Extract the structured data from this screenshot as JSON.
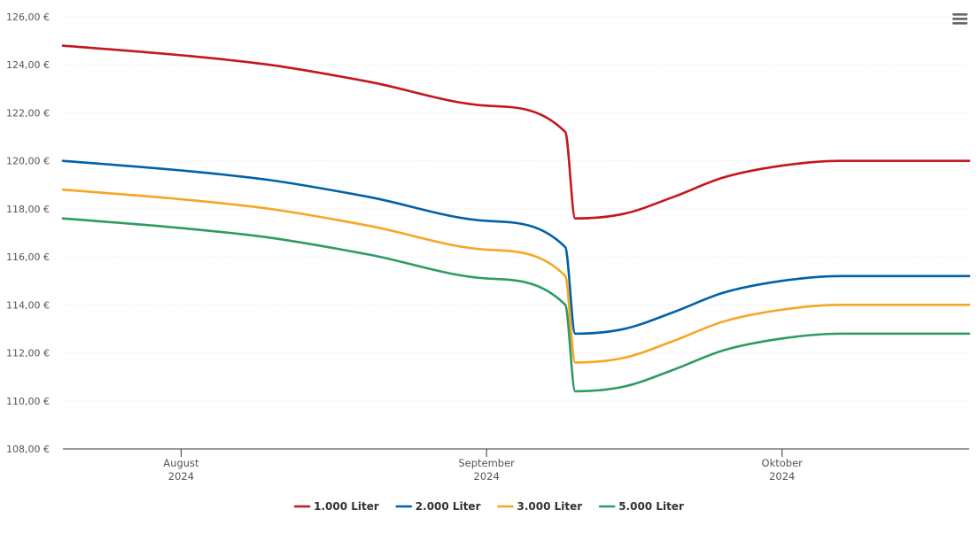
{
  "chart_data": {
    "type": "line",
    "title": "",
    "xlabel": "",
    "ylabel": "",
    "ylim": [
      108,
      126
    ],
    "yticks": [
      "108,00 €",
      "110,00 €",
      "112,00 €",
      "114,00 €",
      "116,00 €",
      "118,00 €",
      "120,00 €",
      "122,00 €",
      "124,00 €",
      "126,00 €"
    ],
    "xlim": [
      "2024-07-20",
      "2024-10-20"
    ],
    "xticks": [
      {
        "date": "2024-08-01",
        "label": "August",
        "year": "2024"
      },
      {
        "date": "2024-09-01",
        "label": "September",
        "year": "2024"
      },
      {
        "date": "2024-10-01",
        "label": "Oktober",
        "year": "2024"
      }
    ],
    "legend_position": "bottom",
    "grid": true,
    "series": [
      {
        "name": "1.000 Liter",
        "color": "#c4161c",
        "points": [
          [
            "2024-07-20",
            124.8
          ],
          [
            "2024-08-01",
            124.4
          ],
          [
            "2024-08-10",
            124.0
          ],
          [
            "2024-08-20",
            123.3
          ],
          [
            "2024-09-01",
            122.3
          ],
          [
            "2024-09-09",
            121.2
          ],
          [
            "2024-09-10",
            117.6
          ],
          [
            "2024-09-15",
            117.8
          ],
          [
            "2024-09-20",
            118.5
          ],
          [
            "2024-09-25",
            119.3
          ],
          [
            "2024-10-01",
            119.8
          ],
          [
            "2024-10-07",
            120.0
          ],
          [
            "2024-10-20",
            120.0
          ]
        ]
      },
      {
        "name": "2.000 Liter",
        "color": "#0061a8",
        "points": [
          [
            "2024-07-20",
            120.0
          ],
          [
            "2024-08-01",
            119.6
          ],
          [
            "2024-08-10",
            119.2
          ],
          [
            "2024-08-20",
            118.5
          ],
          [
            "2024-09-01",
            117.5
          ],
          [
            "2024-09-09",
            116.4
          ],
          [
            "2024-09-10",
            112.8
          ],
          [
            "2024-09-15",
            113.0
          ],
          [
            "2024-09-20",
            113.7
          ],
          [
            "2024-09-25",
            114.5
          ],
          [
            "2024-10-01",
            115.0
          ],
          [
            "2024-10-07",
            115.2
          ],
          [
            "2024-10-20",
            115.2
          ]
        ]
      },
      {
        "name": "3.000 Liter",
        "color": "#f6a623",
        "points": [
          [
            "2024-07-20",
            118.8
          ],
          [
            "2024-08-01",
            118.4
          ],
          [
            "2024-08-10",
            118.0
          ],
          [
            "2024-08-20",
            117.3
          ],
          [
            "2024-09-01",
            116.3
          ],
          [
            "2024-09-09",
            115.2
          ],
          [
            "2024-09-10",
            111.6
          ],
          [
            "2024-09-15",
            111.8
          ],
          [
            "2024-09-20",
            112.5
          ],
          [
            "2024-09-25",
            113.3
          ],
          [
            "2024-10-01",
            113.8
          ],
          [
            "2024-10-07",
            114.0
          ],
          [
            "2024-10-20",
            114.0
          ]
        ]
      },
      {
        "name": "5.000 Liter",
        "color": "#2e9b63",
        "points": [
          [
            "2024-07-20",
            117.6
          ],
          [
            "2024-08-01",
            117.2
          ],
          [
            "2024-08-10",
            116.8
          ],
          [
            "2024-08-20",
            116.1
          ],
          [
            "2024-09-01",
            115.1
          ],
          [
            "2024-09-09",
            114.0
          ],
          [
            "2024-09-10",
            110.4
          ],
          [
            "2024-09-15",
            110.6
          ],
          [
            "2024-09-20",
            111.3
          ],
          [
            "2024-09-25",
            112.1
          ],
          [
            "2024-10-01",
            112.6
          ],
          [
            "2024-10-07",
            112.8
          ],
          [
            "2024-10-20",
            112.8
          ]
        ]
      }
    ]
  },
  "menu": {
    "icon": "hamburger-menu-icon"
  }
}
